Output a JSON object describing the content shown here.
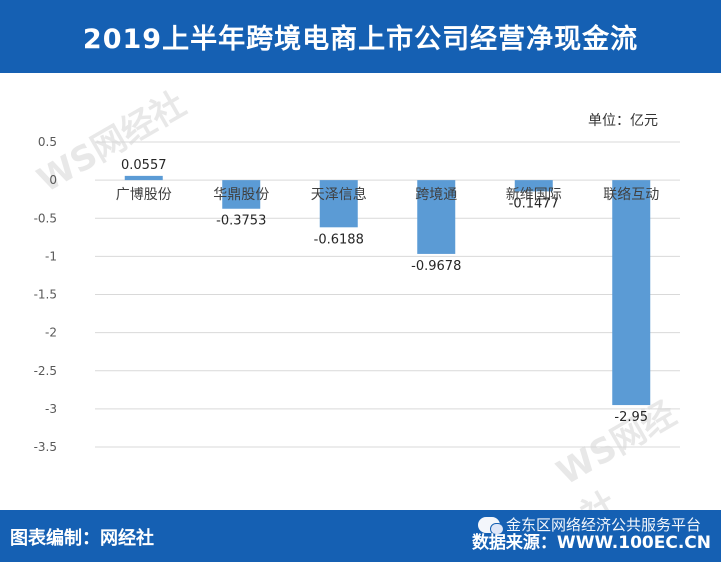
{
  "header": {
    "title": "2019上半年跨境电商上市公司经营净现金流"
  },
  "unit_label": "单位：亿元",
  "footer": {
    "credit": "图表编制：网经社",
    "source": "数据来源：WWW.100EC.CN",
    "wechat": "金东区网络经济公共服务平台"
  },
  "watermark": {
    "text": "WS网经社",
    "sub": "WWW.100EC.CN"
  },
  "colors": {
    "bar": "#5b9bd5",
    "header": "#1560b3",
    "grid": "#d9d9d9",
    "axis_text": "#595959"
  },
  "chart_data": {
    "type": "bar",
    "categories": [
      "广博股份",
      "华鼎股份",
      "天泽信息",
      "跨境通",
      "新维国际",
      "联络互动"
    ],
    "values": [
      0.0557,
      -0.3753,
      -0.6188,
      -0.9678,
      -0.1477,
      -2.95
    ],
    "value_labels": [
      "0.0557",
      "-0.3753",
      "-0.6188",
      "-0.9678",
      "-0.1477",
      "-2.95"
    ],
    "ylim": [
      -3.5,
      0.5
    ],
    "yticks": [
      0.5,
      0,
      -0.5,
      -1,
      -1.5,
      -2,
      -2.5,
      -3,
      -3.5
    ],
    "ytick_labels": [
      "0.5",
      "0",
      "-0.5",
      "-1",
      "-1.5",
      "-2",
      "-2.5",
      "-3",
      "-3.5"
    ],
    "grid": true,
    "title": "2019上半年跨境电商上市公司经营净现金流",
    "ylabel": "单位：亿元"
  }
}
